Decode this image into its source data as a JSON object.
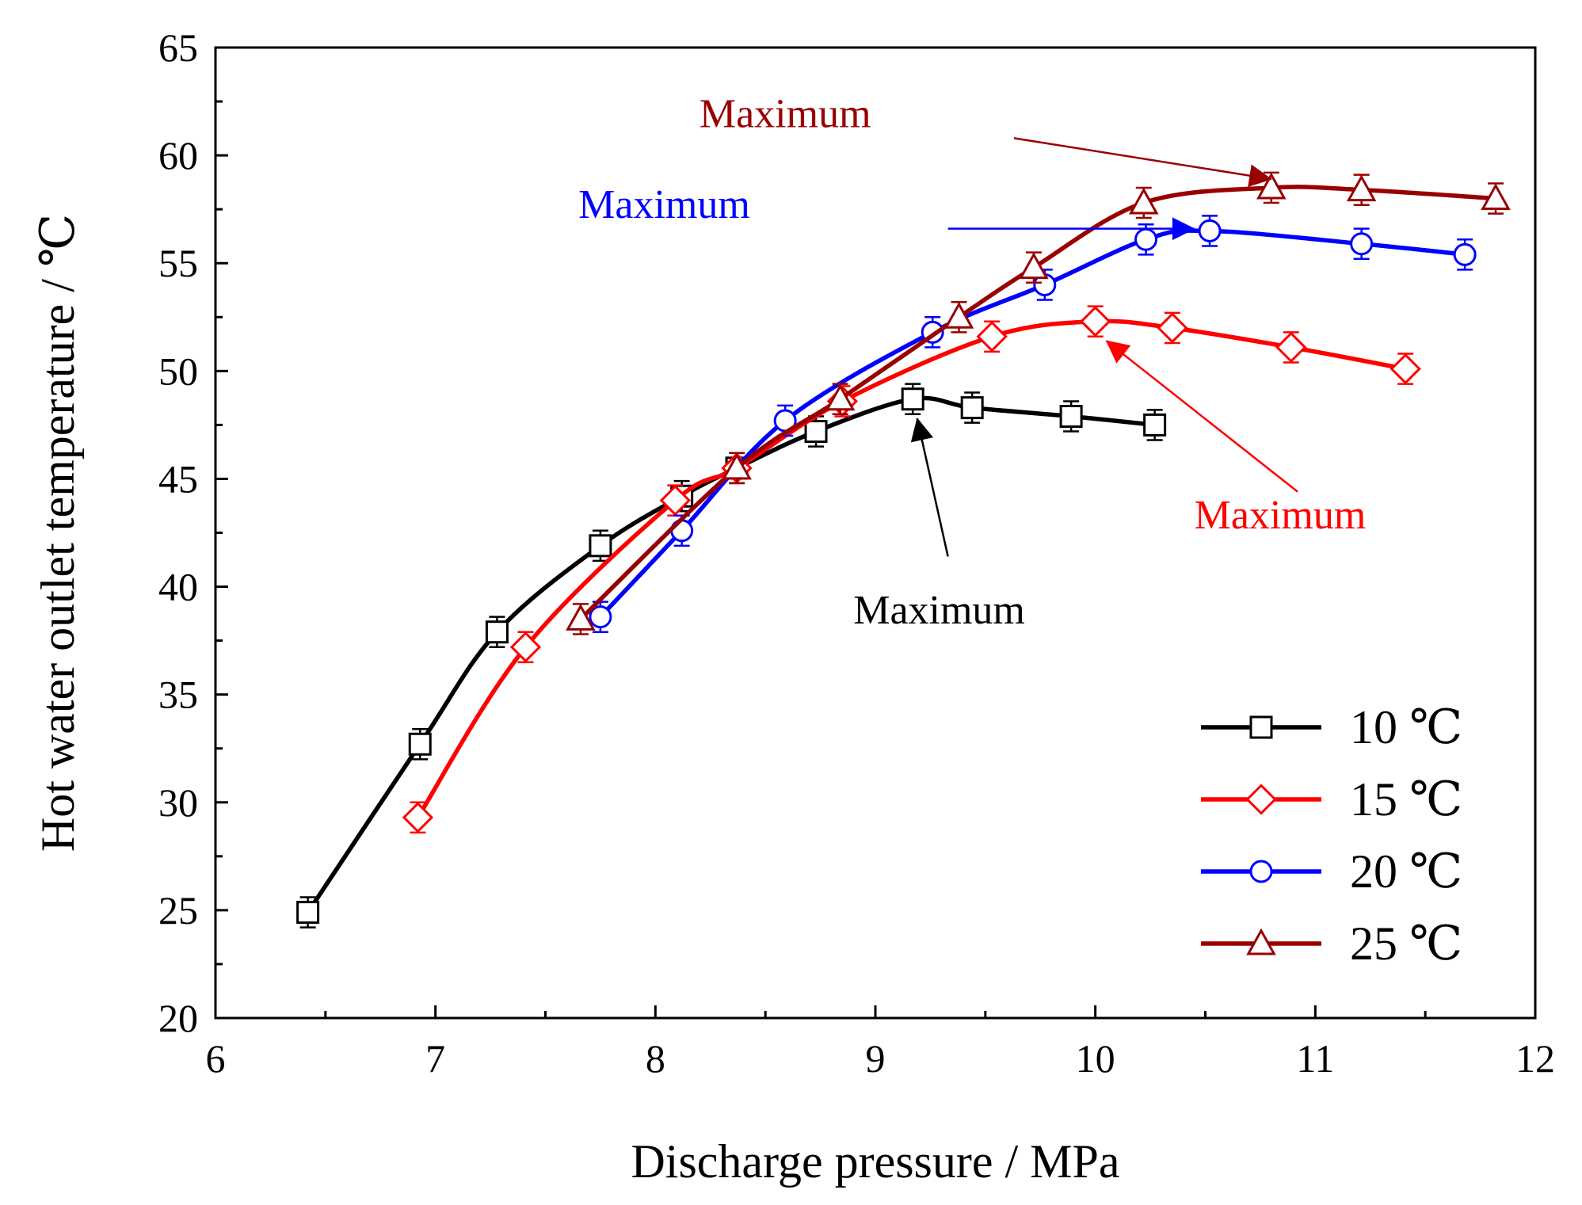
{
  "chart_data": {
    "type": "line",
    "title": "",
    "xlabel": "Discharge pressure  / MPa",
    "ylabel": "Hot water outlet temperature  / ℃",
    "xlim": [
      6,
      12
    ],
    "ylim": [
      20,
      65
    ],
    "x_ticks": [
      6,
      7,
      8,
      9,
      10,
      11,
      12
    ],
    "y_ticks": [
      20,
      25,
      30,
      35,
      40,
      45,
      50,
      55,
      60,
      65
    ],
    "grid": false,
    "legend_position": "bottom-right",
    "error_bar": 0.7,
    "series": [
      {
        "name": "10 ℃",
        "color": "#000000",
        "marker": "square",
        "x": [
          6.42,
          6.93,
          7.28,
          7.75,
          8.12,
          8.37,
          8.73,
          9.17,
          9.44,
          9.89,
          10.27
        ],
        "y": [
          24.9,
          32.7,
          37.9,
          41.9,
          44.2,
          45.5,
          47.2,
          48.7,
          48.3,
          47.9,
          47.5
        ]
      },
      {
        "name": "15 ℃",
        "color": "#ff0000",
        "marker": "diamond",
        "x": [
          6.92,
          7.41,
          8.09,
          8.37,
          8.85,
          9.53,
          10.0,
          10.35,
          10.89,
          11.41
        ],
        "y": [
          29.3,
          37.2,
          44.0,
          45.5,
          48.6,
          51.6,
          52.3,
          52.0,
          51.1,
          50.1
        ]
      },
      {
        "name": "20 ℃",
        "color": "#0000ff",
        "marker": "circle",
        "x": [
          7.75,
          8.12,
          8.59,
          9.26,
          9.77,
          10.23,
          10.52,
          11.21,
          11.68
        ],
        "y": [
          38.6,
          42.6,
          47.7,
          51.8,
          54.0,
          56.1,
          56.5,
          55.9,
          55.4
        ]
      },
      {
        "name": "25 ℃",
        "color": "#990000",
        "marker": "triangle",
        "x": [
          7.66,
          8.37,
          8.84,
          9.38,
          9.72,
          10.22,
          10.8,
          11.21,
          11.82
        ],
        "y": [
          38.5,
          45.5,
          48.7,
          52.5,
          54.8,
          57.8,
          58.5,
          58.4,
          58.0
        ]
      }
    ],
    "annotations": [
      {
        "text": "Maximum",
        "color": "#990000",
        "text_x": 8.2,
        "text_y": 61.3,
        "target_x": 10.8,
        "target_y": 58.9,
        "tail_x": 9.63,
        "tail_y": 60.8
      },
      {
        "text": "Maximum",
        "color": "#0000ff",
        "text_x": 7.65,
        "text_y": 57.1,
        "target_x": 10.45,
        "target_y": 56.6,
        "tail_x": 9.33,
        "tail_y": 56.6
      },
      {
        "text": "Maximum",
        "color": "#ff0000",
        "text_x": 10.45,
        "text_y": 42.7,
        "target_x": 10.05,
        "target_y": 51.4,
        "tail_x": 10.92,
        "tail_y": 44.4
      },
      {
        "text": "Maximum",
        "color": "#000000",
        "text_x": 8.9,
        "text_y": 38.3,
        "target_x": 9.19,
        "target_y": 47.8,
        "tail_x": 9.33,
        "tail_y": 41.4
      }
    ]
  }
}
